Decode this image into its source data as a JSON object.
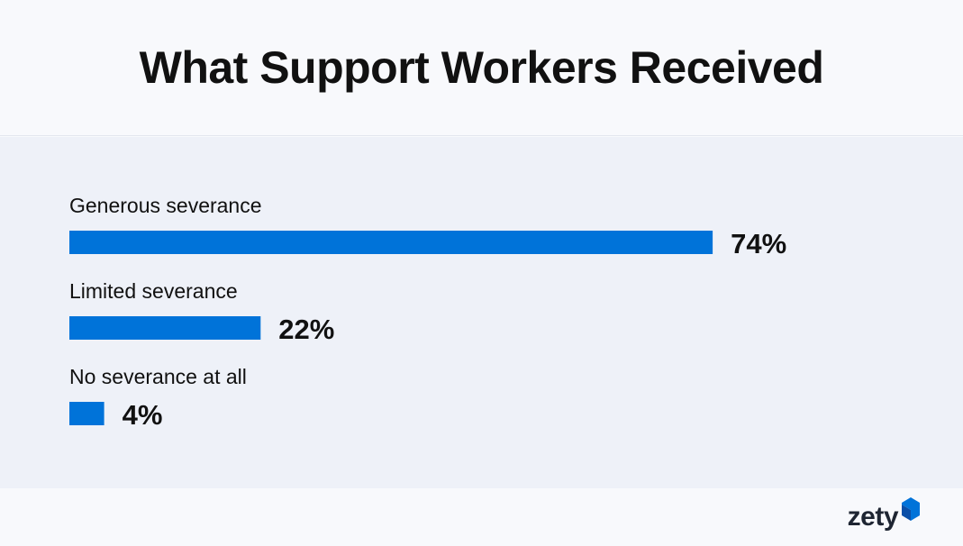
{
  "chart_data": {
    "type": "bar",
    "orientation": "horizontal",
    "title": "What Support Workers Received",
    "categories": [
      "Generous severance",
      "Limited severance",
      "No severance at all"
    ],
    "values": [
      74,
      22,
      4
    ],
    "value_labels": [
      "74%",
      "22%",
      "4%"
    ],
    "unit": "%",
    "xlim": [
      0,
      100
    ],
    "grid": false,
    "legend": "none",
    "bar_color": "#0073d9"
  },
  "brand": {
    "name": "zety",
    "accent": "#0073d9"
  }
}
